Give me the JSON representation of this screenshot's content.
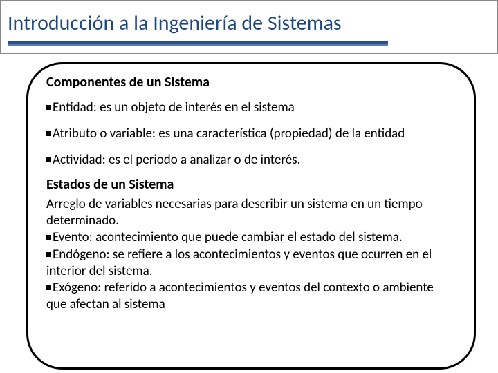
{
  "title": "Introducción  a la Ingeniería de Sistemas",
  "colors": {
    "title_text": "#1f497d",
    "underline_dark": "#2a4e87",
    "underline_light": "#5b7bb0",
    "border": "#000000",
    "text": "#000000",
    "background": "#ffffff"
  },
  "typography": {
    "title_fontsize": 30,
    "heading_fontsize": 20,
    "body_fontsize": 19,
    "loose_line_height": 1.73,
    "tight_line_height": 1.28
  },
  "layout": {
    "slide_width": 720,
    "slide_height": 540,
    "content_border_radius": 52,
    "content_border_width": 3
  },
  "section1": {
    "heading": "Componentes de un Sistema",
    "items": [
      "Entidad: es un objeto de interés en el sistema",
      "Atributo o variable: es una característica (propiedad) de la entidad",
      "Actividad: es el periodo a analizar o de interés."
    ]
  },
  "section2": {
    "heading": "Estados de un Sistema",
    "intro": "Arreglo de variables necesarias para describir un sistema en un tiempo determinado.",
    "items": [
      "Evento: acontecimiento que puede cambiar el estado del sistema.",
      "Endógeno: se refiere a los acontecimientos y eventos que ocurren en el interior del sistema.",
      "Exógeno: referido a acontecimientos y eventos del contexto o ambiente que afectan al sistema"
    ]
  }
}
